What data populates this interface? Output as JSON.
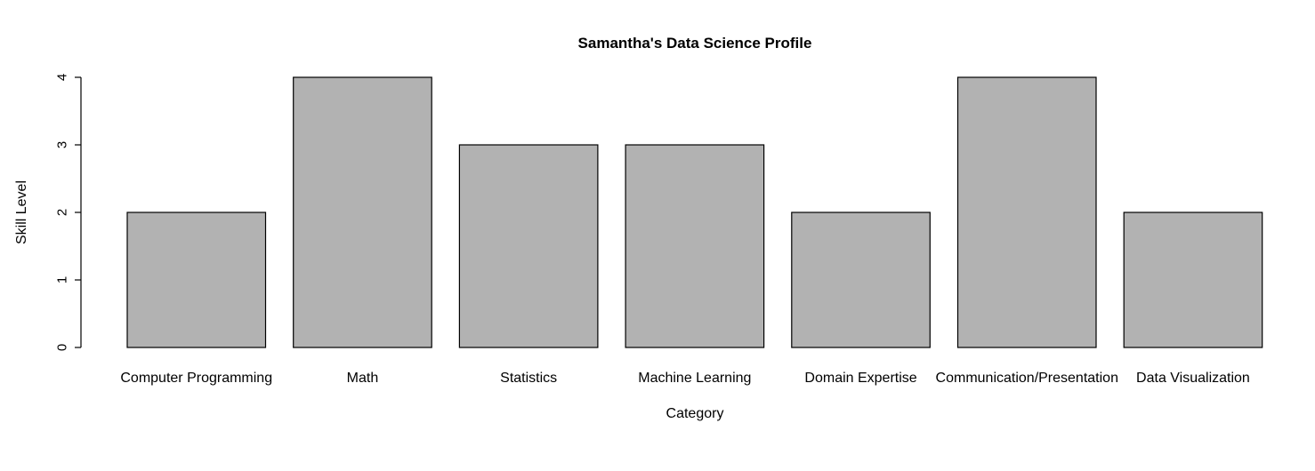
{
  "chart_data": {
    "type": "bar",
    "title": "Samantha's Data Science Profile",
    "xlabel": "Category",
    "ylabel": "Skill Level",
    "categories": [
      "Computer Programming",
      "Math",
      "Statistics",
      "Machine Learning",
      "Domain Expertise",
      "Communication/Presentation",
      "Data Visualization"
    ],
    "values": [
      2,
      4,
      3,
      3,
      2,
      4,
      2
    ],
    "ylim": [
      0,
      4
    ],
    "yticks": [
      0,
      1,
      2,
      3,
      4
    ],
    "grid": false,
    "legend": "none",
    "colors": {
      "bar_fill": "#b2b2b2",
      "bar_stroke": "#000000"
    }
  }
}
